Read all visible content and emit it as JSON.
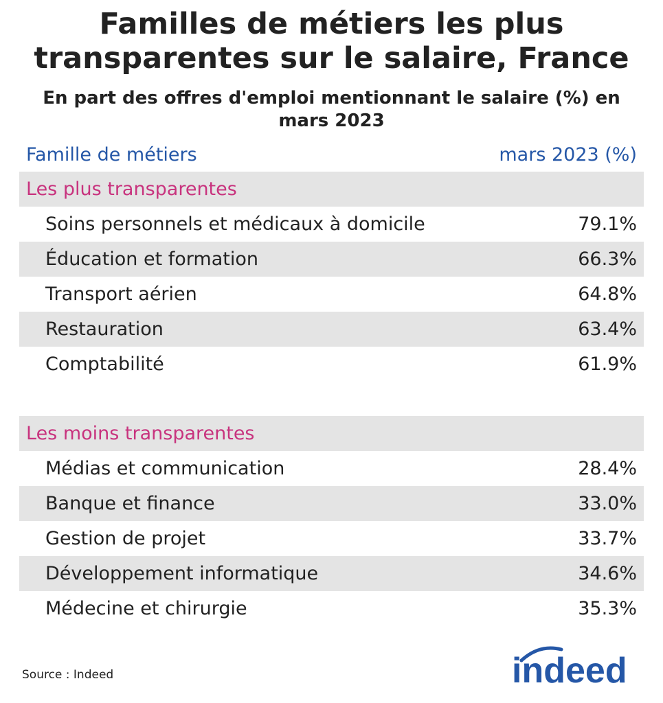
{
  "header": {
    "title": [
      "Familles de métiers les plus",
      "transparentes sur le salaire, France"
    ],
    "subtitle": [
      "En part des offres d'emploi mentionnant le salaire (%) en",
      "mars 2023"
    ]
  },
  "table": {
    "columns": [
      "Famille de métiers",
      "mars 2023 (%)"
    ],
    "groups": [
      {
        "label": "Les plus transparentes",
        "rows": [
          [
            "Soins personnels et médicaux à domicile",
            "79.1%"
          ],
          [
            "Éducation et formation",
            "66.3%"
          ],
          [
            "Transport aérien",
            "64.8%"
          ],
          [
            "Restauration",
            "63.4%"
          ],
          [
            "Comptabilité",
            "61.9%"
          ]
        ]
      },
      {
        "label": "Les moins transparentes",
        "rows": [
          [
            "Médias et communication",
            "28.4%"
          ],
          [
            "Banque et finance",
            "33.0%"
          ],
          [
            "Gestion de projet",
            "33.7%"
          ],
          [
            "Développement informatique",
            "34.6%"
          ],
          [
            "Médecine et chirurgie",
            "35.3%"
          ]
        ]
      }
    ]
  },
  "source": "Source : Indeed",
  "logo": "indeed"
}
